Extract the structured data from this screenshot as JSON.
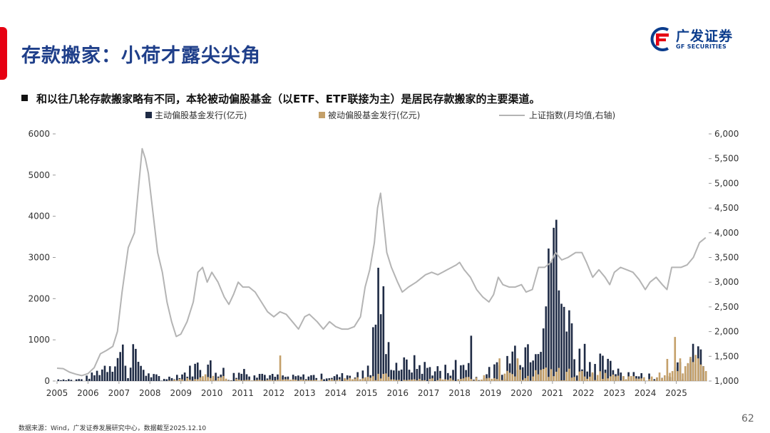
{
  "header": {
    "title": "存款搬家：小荷才露尖尖角",
    "logo_cn": "广发证券",
    "logo_en": "GF SECURITIES"
  },
  "bullet": "和以往几轮存款搬家略有不同，本轮被动偏股基金（以ETF、ETF联接为主）是居民存款搬家的主要渠道。",
  "footer": {
    "source": "数据来源：Wind，广发证券发展研究中心，数据截至2025.12.10",
    "page": "62"
  },
  "colors": {
    "active": "#1f2b45",
    "passive": "#c4a06a",
    "index": "#b4b4b4",
    "brand": "#1f3f8a",
    "accent": "#e60012"
  },
  "chart_data": {
    "type": "bar+line",
    "legend": [
      "主动偏股基金发行(亿元)",
      "被动偏股基金发行(亿元)",
      "上证指数(月均值,右轴)"
    ],
    "x_labels": [
      "2005",
      "2006",
      "2007",
      "2008",
      "2009",
      "2010",
      "2011",
      "2012",
      "2013",
      "2014",
      "2015",
      "2016",
      "2017",
      "2018",
      "2019",
      "2020",
      "2021",
      "2022",
      "2023",
      "2024",
      "2025"
    ],
    "y_left": {
      "min": 0,
      "max": 6000,
      "ticks": [
        "0",
        "1000",
        "2000",
        "3000",
        "4000",
        "5000",
        "6000"
      ]
    },
    "y_right": {
      "min": 1000,
      "max": 6000,
      "ticks": [
        "1,000",
        "1,500",
        "2,000",
        "2,500",
        "3,000",
        "3,500",
        "4,000",
        "4,500",
        "5,000",
        "5,500",
        "6,000"
      ]
    },
    "active_keypoints": [
      [
        2005.0,
        40
      ],
      [
        2005.8,
        40
      ],
      [
        2006.2,
        150
      ],
      [
        2006.8,
        500
      ],
      [
        2007.4,
        800
      ],
      [
        2007.9,
        150
      ],
      [
        2008.5,
        60
      ],
      [
        2009.2,
        200
      ],
      [
        2009.7,
        450
      ],
      [
        2010.2,
        250
      ],
      [
        2010.7,
        200
      ],
      [
        2011.3,
        250
      ],
      [
        2011.8,
        120
      ],
      [
        2012.5,
        90
      ],
      [
        2013.3,
        120
      ],
      [
        2013.9,
        100
      ],
      [
        2014.5,
        150
      ],
      [
        2014.9,
        300
      ],
      [
        2015.2,
        1200
      ],
      [
        2015.45,
        2600
      ],
      [
        2015.6,
        800
      ],
      [
        2016.0,
        350
      ],
      [
        2016.5,
        400
      ],
      [
        2017.0,
        300
      ],
      [
        2017.5,
        250
      ],
      [
        2018.0,
        400
      ],
      [
        2018.3,
        400
      ],
      [
        2018.8,
        150
      ],
      [
        2019.3,
        350
      ],
      [
        2019.8,
        700
      ],
      [
        2020.2,
        850
      ],
      [
        2020.6,
        1400
      ],
      [
        2020.9,
        2200
      ],
      [
        2021.1,
        3000
      ],
      [
        2021.4,
        1400
      ],
      [
        2021.8,
        1000
      ],
      [
        2022.2,
        500
      ],
      [
        2022.6,
        400
      ],
      [
        2023.0,
        300
      ],
      [
        2023.5,
        200
      ],
      [
        2024.0,
        150
      ],
      [
        2024.5,
        100
      ],
      [
        2024.9,
        250
      ],
      [
        2025.3,
        350
      ],
      [
        2025.7,
        700
      ],
      [
        2025.95,
        300
      ]
    ],
    "active_overrides": [
      [
        2007.0,
        1100
      ],
      [
        2007.25,
        650
      ],
      [
        2007.55,
        780
      ],
      [
        2010.0,
        750
      ],
      [
        2015.4,
        2750
      ],
      [
        2015.55,
        2300
      ],
      [
        2018.4,
        1100
      ],
      [
        2020.95,
        2900
      ],
      [
        2021.08,
        3720
      ],
      [
        2021.2,
        2200
      ],
      [
        2021.35,
        1800
      ],
      [
        2021.6,
        1400
      ]
    ],
    "passive_keypoints": [
      [
        2005.0,
        0
      ],
      [
        2008.5,
        0
      ],
      [
        2009.5,
        80
      ],
      [
        2010.0,
        150
      ],
      [
        2011.0,
        20
      ],
      [
        2012.5,
        30
      ],
      [
        2013.0,
        20
      ],
      [
        2014.0,
        30
      ],
      [
        2015.0,
        100
      ],
      [
        2015.5,
        150
      ],
      [
        2016.0,
        30
      ],
      [
        2018.0,
        50
      ],
      [
        2019.0,
        120
      ],
      [
        2019.5,
        150
      ],
      [
        2020.5,
        200
      ],
      [
        2021.0,
        220
      ],
      [
        2021.5,
        200
      ],
      [
        2022.0,
        150
      ],
      [
        2022.5,
        150
      ],
      [
        2023.0,
        100
      ],
      [
        2023.5,
        80
      ],
      [
        2024.0,
        60
      ],
      [
        2024.5,
        150
      ],
      [
        2024.9,
        500
      ],
      [
        2025.2,
        300
      ],
      [
        2025.6,
        400
      ],
      [
        2025.95,
        250
      ]
    ],
    "passive_overrides": [
      [
        2012.2,
        620
      ],
      [
        2010.0,
        380
      ],
      [
        2019.3,
        550
      ],
      [
        2019.9,
        550
      ],
      [
        2024.92,
        1070
      ],
      [
        2025.1,
        550
      ],
      [
        2025.7,
        550
      ]
    ],
    "index_points": [
      [
        2005.0,
        1260
      ],
      [
        2005.2,
        1250
      ],
      [
        2005.4,
        1180
      ],
      [
        2005.6,
        1140
      ],
      [
        2005.8,
        1110
      ],
      [
        2006.0,
        1150
      ],
      [
        2006.2,
        1270
      ],
      [
        2006.4,
        1550
      ],
      [
        2006.6,
        1620
      ],
      [
        2006.8,
        1700
      ],
      [
        2006.95,
        2000
      ],
      [
        2007.1,
        2800
      ],
      [
        2007.3,
        3700
      ],
      [
        2007.5,
        4000
      ],
      [
        2007.6,
        4700
      ],
      [
        2007.75,
        5700
      ],
      [
        2007.85,
        5500
      ],
      [
        2007.95,
        5200
      ],
      [
        2008.1,
        4400
      ],
      [
        2008.25,
        3600
      ],
      [
        2008.4,
        3200
      ],
      [
        2008.55,
        2600
      ],
      [
        2008.7,
        2200
      ],
      [
        2008.85,
        1900
      ],
      [
        2009.0,
        1950
      ],
      [
        2009.2,
        2200
      ],
      [
        2009.4,
        2600
      ],
      [
        2009.55,
        3200
      ],
      [
        2009.7,
        3300
      ],
      [
        2009.85,
        3000
      ],
      [
        2010.0,
        3200
      ],
      [
        2010.2,
        3000
      ],
      [
        2010.4,
        2700
      ],
      [
        2010.55,
        2550
      ],
      [
        2010.7,
        2750
      ],
      [
        2010.85,
        3000
      ],
      [
        2011.0,
        2900
      ],
      [
        2011.2,
        2900
      ],
      [
        2011.4,
        2800
      ],
      [
        2011.6,
        2600
      ],
      [
        2011.8,
        2400
      ],
      [
        2012.0,
        2300
      ],
      [
        2012.2,
        2400
      ],
      [
        2012.4,
        2350
      ],
      [
        2012.6,
        2200
      ],
      [
        2012.8,
        2050
      ],
      [
        2013.0,
        2300
      ],
      [
        2013.15,
        2350
      ],
      [
        2013.4,
        2200
      ],
      [
        2013.6,
        2050
      ],
      [
        2013.8,
        2200
      ],
      [
        2014.0,
        2100
      ],
      [
        2014.2,
        2050
      ],
      [
        2014.4,
        2050
      ],
      [
        2014.6,
        2100
      ],
      [
        2014.8,
        2300
      ],
      [
        2014.95,
        2900
      ],
      [
        2015.1,
        3250
      ],
      [
        2015.25,
        3800
      ],
      [
        2015.35,
        4500
      ],
      [
        2015.45,
        4800
      ],
      [
        2015.55,
        4200
      ],
      [
        2015.65,
        3600
      ],
      [
        2015.8,
        3300
      ],
      [
        2016.0,
        3000
      ],
      [
        2016.15,
        2800
      ],
      [
        2016.35,
        2900
      ],
      [
        2016.6,
        3000
      ],
      [
        2016.9,
        3150
      ],
      [
        2017.1,
        3200
      ],
      [
        2017.3,
        3150
      ],
      [
        2017.6,
        3250
      ],
      [
        2017.9,
        3350
      ],
      [
        2018.0,
        3400
      ],
      [
        2018.15,
        3250
      ],
      [
        2018.35,
        3100
      ],
      [
        2018.55,
        2850
      ],
      [
        2018.75,
        2700
      ],
      [
        2018.95,
        2600
      ],
      [
        2019.1,
        2750
      ],
      [
        2019.25,
        3100
      ],
      [
        2019.4,
        2950
      ],
      [
        2019.6,
        2900
      ],
      [
        2019.8,
        2900
      ],
      [
        2020.0,
        2950
      ],
      [
        2020.15,
        2800
      ],
      [
        2020.35,
        2850
      ],
      [
        2020.55,
        3300
      ],
      [
        2020.75,
        3300
      ],
      [
        2020.95,
        3400
      ],
      [
        2021.1,
        3600
      ],
      [
        2021.3,
        3450
      ],
      [
        2021.5,
        3500
      ],
      [
        2021.75,
        3600
      ],
      [
        2021.95,
        3600
      ],
      [
        2022.1,
        3400
      ],
      [
        2022.3,
        3100
      ],
      [
        2022.5,
        3250
      ],
      [
        2022.7,
        3100
      ],
      [
        2022.85,
        2950
      ],
      [
        2023.0,
        3200
      ],
      [
        2023.2,
        3300
      ],
      [
        2023.4,
        3250
      ],
      [
        2023.6,
        3200
      ],
      [
        2023.8,
        3050
      ],
      [
        2024.0,
        2850
      ],
      [
        2024.15,
        3000
      ],
      [
        2024.35,
        3100
      ],
      [
        2024.55,
        2950
      ],
      [
        2024.7,
        2850
      ],
      [
        2024.85,
        3300
      ],
      [
        2025.0,
        3300
      ],
      [
        2025.15,
        3300
      ],
      [
        2025.35,
        3350
      ],
      [
        2025.55,
        3500
      ],
      [
        2025.75,
        3800
      ],
      [
        2025.95,
        3900
      ]
    ]
  }
}
